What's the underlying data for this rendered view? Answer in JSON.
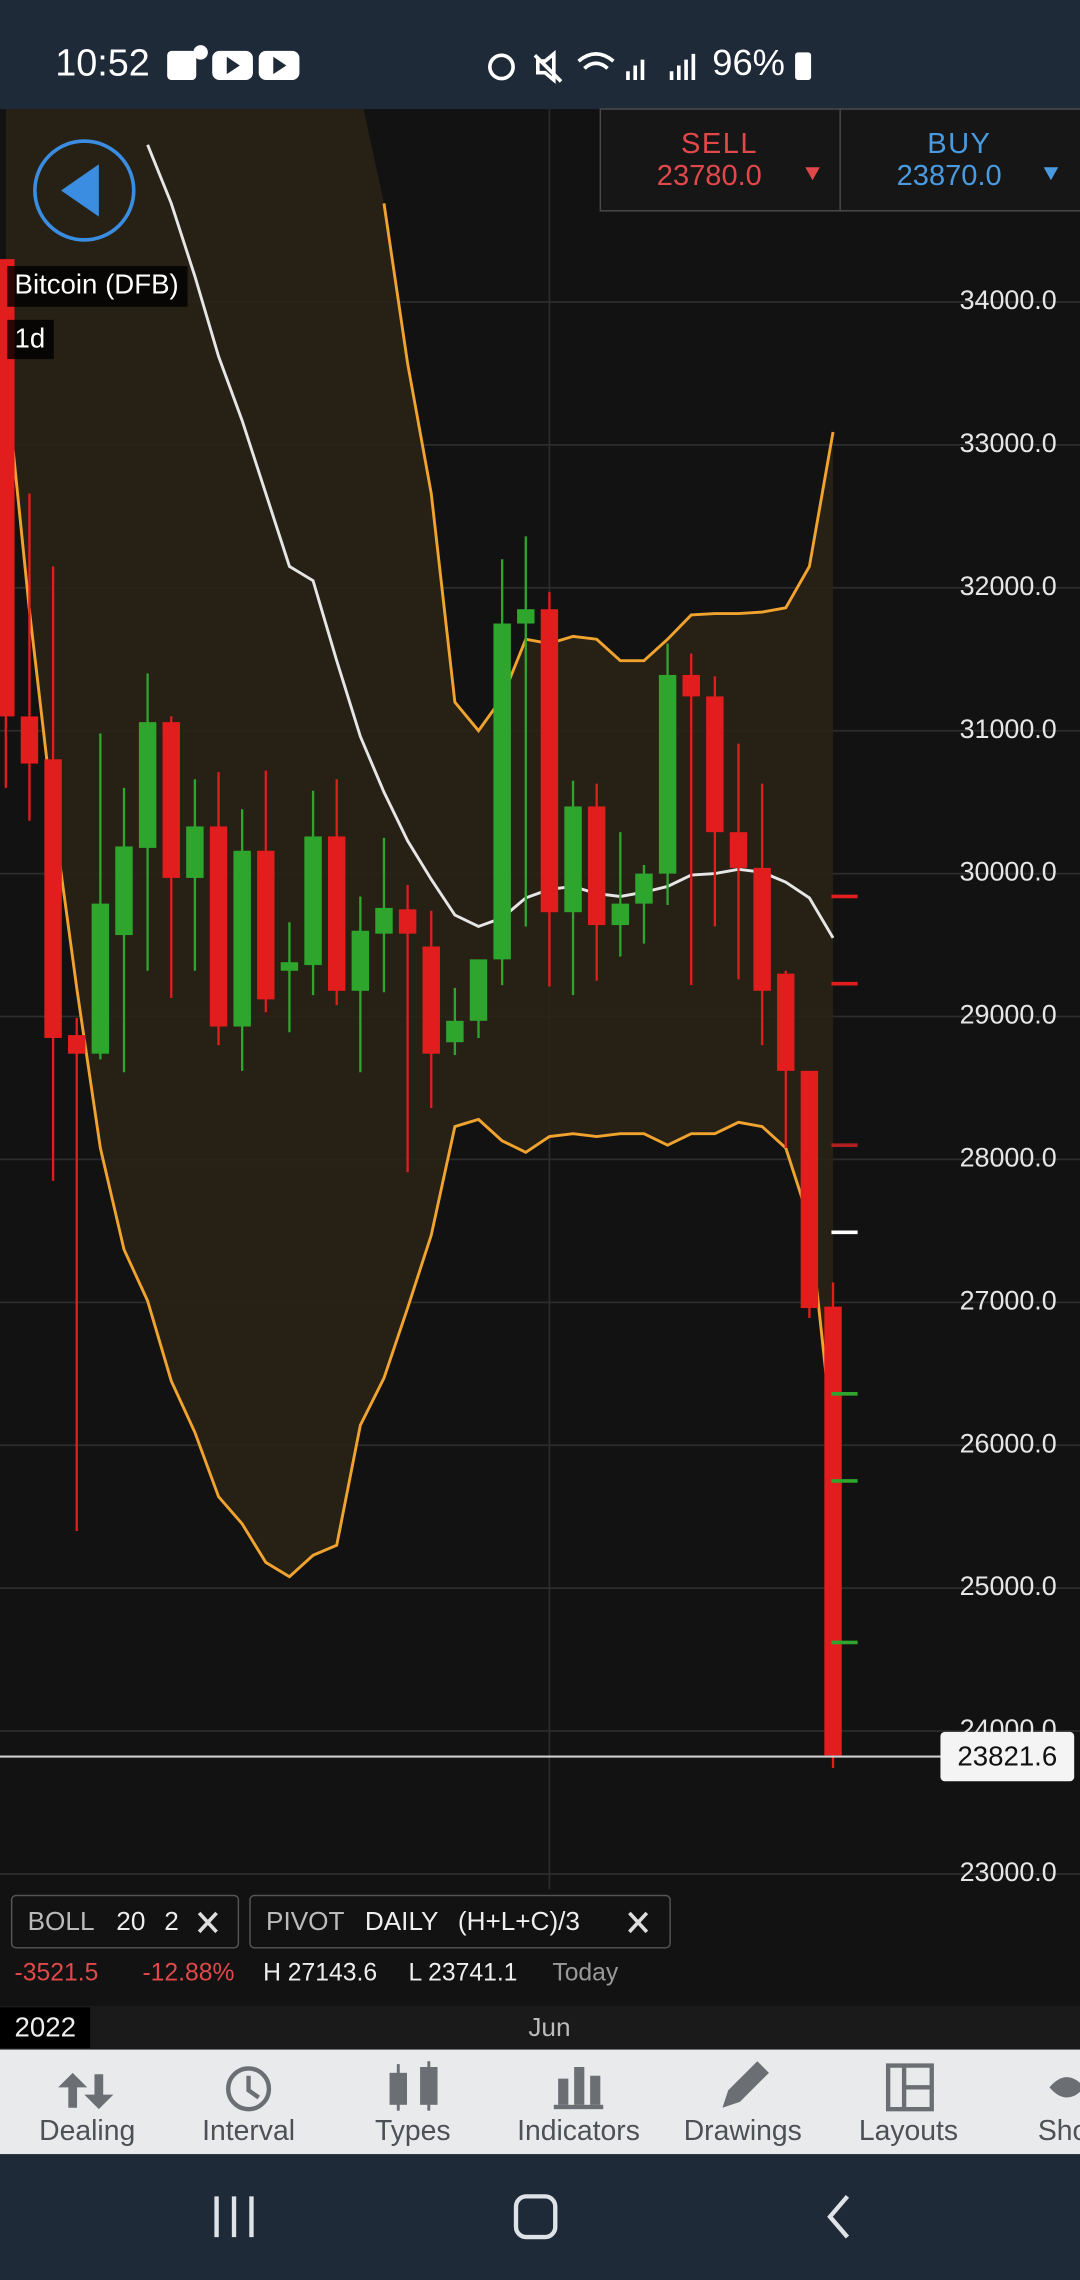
{
  "status_bar": {
    "time": "10:52",
    "battery": "96%"
  },
  "trade_panel": {
    "sell_label": "SELL",
    "sell_price": "23780.0",
    "buy_label": "BUY",
    "buy_price": "23870.0"
  },
  "instrument": {
    "name": "Bitcoin (DFB)",
    "interval": "1d"
  },
  "chart": {
    "type": "candlestick",
    "ylim": [
      22890,
      35350
    ],
    "yticks": [
      {
        "value": 23000,
        "label": "23000.0"
      },
      {
        "value": 24000,
        "label": "24000.0"
      },
      {
        "value": 25000,
        "label": "25000.0"
      },
      {
        "value": 26000,
        "label": "26000.0"
      },
      {
        "value": 27000,
        "label": "27000.0"
      },
      {
        "value": 28000,
        "label": "28000.0"
      },
      {
        "value": 29000,
        "label": "29000.0"
      },
      {
        "value": 30000,
        "label": "30000.0"
      },
      {
        "value": 31000,
        "label": "31000.0"
      },
      {
        "value": 32000,
        "label": "32000.0"
      },
      {
        "value": 33000,
        "label": "33000.0"
      },
      {
        "value": 34000,
        "label": "34000.0"
      }
    ],
    "grid": true,
    "year_label": "2022",
    "categories": [
      null,
      null,
      null,
      null,
      null,
      null,
      null,
      null,
      null,
      null,
      null,
      null,
      null,
      null,
      null,
      null,
      null,
      null,
      null,
      null,
      null,
      null,
      null,
      "Jun",
      null,
      null,
      null,
      null,
      null,
      null,
      null,
      null,
      null,
      null,
      null,
      null
    ],
    "up_color": "#2ea62e",
    "down_color": "#e21d1d",
    "candles": {
      "open": [
        34300,
        31100,
        30800,
        28870,
        28740,
        29570,
        30180,
        31060,
        29970,
        30330,
        28930,
        30160,
        29320,
        29360,
        30260,
        29180,
        29580,
        29750,
        29490,
        28820,
        28970,
        29400,
        31750,
        31850,
        29730,
        30470,
        29640,
        29790,
        30000,
        31390,
        31240,
        30290,
        30040,
        29300,
        28620,
        26970
      ],
      "high": [
        34300,
        32660,
        32150,
        28990,
        30980,
        30600,
        31400,
        31100,
        30660,
        30710,
        30450,
        30720,
        29660,
        30580,
        30660,
        29840,
        30250,
        29920,
        29740,
        29200,
        29330,
        32200,
        32360,
        31970,
        30650,
        30630,
        30290,
        30060,
        31610,
        31540,
        31380,
        30910,
        30630,
        29320,
        28600,
        27140
      ],
      "low": [
        30600,
        30370,
        27850,
        25400,
        28700,
        28610,
        29320,
        29130,
        29320,
        28800,
        28620,
        29030,
        28890,
        29150,
        29080,
        28610,
        29170,
        27910,
        28360,
        28730,
        28850,
        29220,
        29630,
        29210,
        29150,
        29250,
        29420,
        29510,
        29780,
        29220,
        29630,
        29260,
        28800,
        28080,
        26890,
        23741.1
      ],
      "close": [
        31100,
        30770,
        28850,
        28740,
        29790,
        30190,
        31060,
        29970,
        30330,
        28930,
        30160,
        29120,
        29380,
        30260,
        29180,
        29600,
        29760,
        29580,
        28740,
        28970,
        29400,
        31750,
        31850,
        29730,
        30470,
        29640,
        29790,
        30000,
        31390,
        31240,
        30290,
        30040,
        29180,
        28620,
        26960,
        23830
      ]
    },
    "bollinger": {
      "colors": {
        "upper": "#f0a32e",
        "middle": "#e6e6e6",
        "lower": "#f0a32e"
      },
      "fill": "#2a2216",
      "upper": [
        null,
        null,
        null,
        null,
        null,
        null,
        null,
        null,
        null,
        null,
        null,
        null,
        null,
        null,
        null,
        null,
        34690,
        33570,
        32660,
        31200,
        31000,
        31230,
        31640,
        31610,
        31660,
        31640,
        31490,
        31490,
        31640,
        31810,
        31820,
        31820,
        31830,
        31860,
        32150,
        33090
      ],
      "middle": [
        null,
        null,
        null,
        null,
        null,
        null,
        35100,
        34690,
        34180,
        33620,
        33170,
        32660,
        32150,
        32050,
        31490,
        30960,
        30570,
        30230,
        29960,
        29710,
        29630,
        29690,
        29830,
        29890,
        29910,
        29860,
        29840,
        29870,
        29910,
        29990,
        30000,
        30030,
        30010,
        29940,
        29830,
        29550
      ],
      "lower": [
        33470,
        31840,
        30420,
        29200,
        28080,
        27370,
        27010,
        26450,
        26090,
        25640,
        25450,
        25180,
        25080,
        25230,
        25300,
        26140,
        26470,
        26960,
        27470,
        28230,
        28280,
        28130,
        28050,
        28160,
        28180,
        28160,
        28180,
        28180,
        28100,
        28180,
        28180,
        28260,
        28230,
        28080,
        27570,
        26040
      ]
    },
    "pivot_levels": [
      29840,
      29230,
      28100,
      27490,
      26360,
      25750,
      24620
    ],
    "pivot_colors": [
      "#e21d1d",
      "#e21d1d",
      "#b02020",
      "#ffffff",
      "#2ea62e",
      "#2ea62e",
      "#2ea62e"
    ],
    "last_price": {
      "value": 23821.6,
      "label": "23821.6"
    }
  },
  "indicators": {
    "boll": {
      "name": "BOLL",
      "period": "20",
      "deviation": "2"
    },
    "pivot": {
      "name": "PIVOT",
      "period": "DAILY",
      "formula": "(H+L+C)/3"
    },
    "stats": {
      "change": "-3521.5",
      "change_pct": "-12.88%",
      "high": "H 27143.6",
      "low": "L 23741.1",
      "period": "Today"
    }
  },
  "toolbar": [
    "Dealing",
    "Interval",
    "Types",
    "Indicators",
    "Drawings",
    "Layouts",
    "Sho"
  ]
}
